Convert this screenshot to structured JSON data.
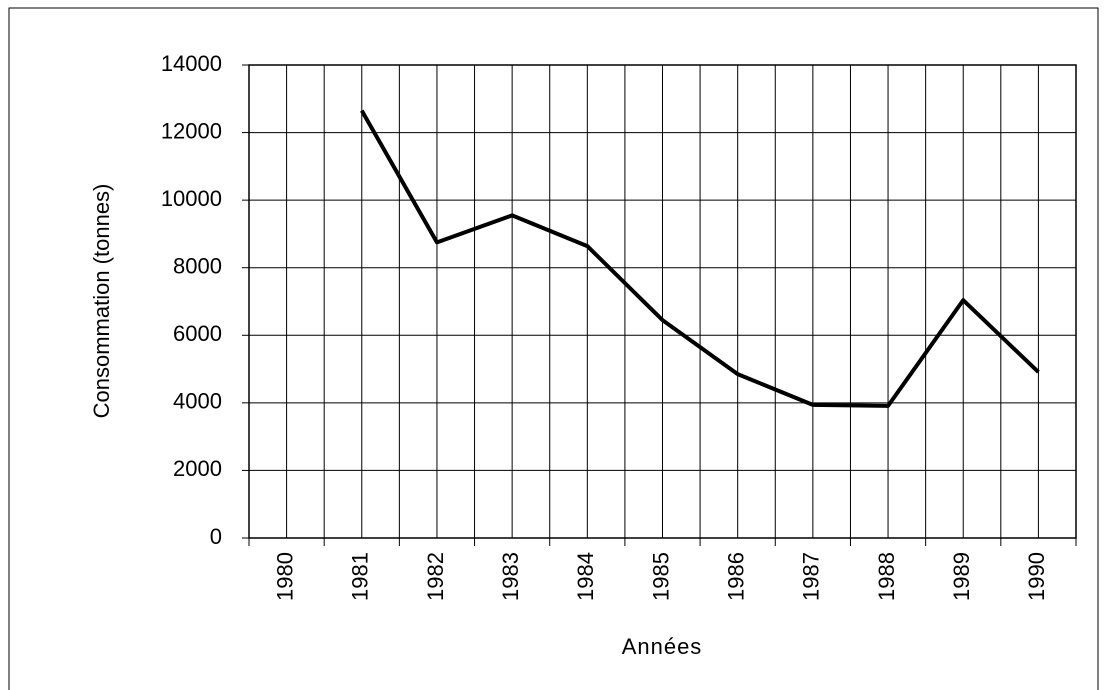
{
  "chart_data": {
    "type": "line",
    "xlabel": "Années",
    "ylabel": "Consommation (tonnes)",
    "categories": [
      "1980",
      "1981",
      "1982",
      "1983",
      "1984",
      "1985",
      "1986",
      "1987",
      "1988",
      "1989",
      "1990"
    ],
    "series": [
      {
        "color": "#000000",
        "values": [
          null,
          12650,
          8750,
          9550,
          8640,
          6450,
          4850,
          3940,
          3910,
          7040,
          4910
        ]
      }
    ],
    "ylim": [
      0,
      14000
    ],
    "yticks": [
      0,
      2000,
      4000,
      6000,
      8000,
      10000,
      12000,
      14000
    ],
    "grid": true
  }
}
